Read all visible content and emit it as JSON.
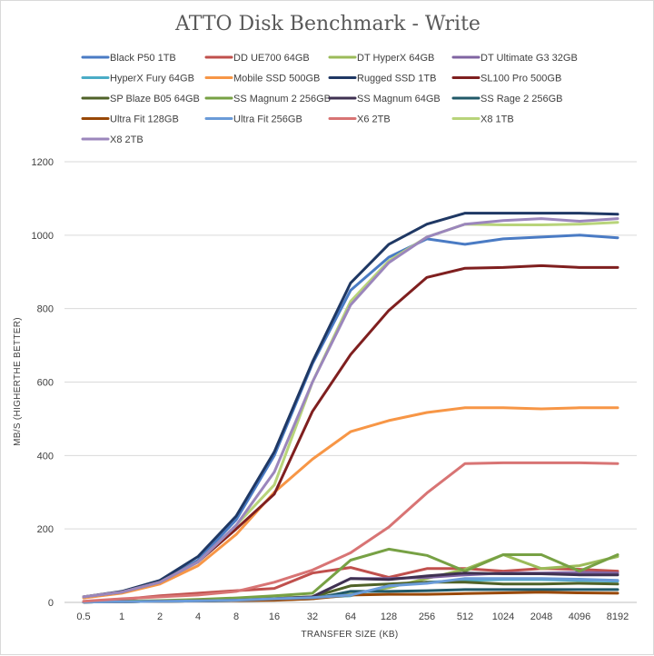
{
  "chart_data": {
    "type": "line",
    "title": "ATTO Disk Benchmark - Write",
    "xlabel": "TRANSFER SIZE (KB)",
    "ylabel": "MB/S (HIGHERTHE BETTER)",
    "ylim": [
      0,
      1200
    ],
    "yticks": [
      0,
      200,
      400,
      600,
      800,
      1000,
      1200
    ],
    "grid": true,
    "legend_position": "top",
    "categories": [
      "0.5",
      "1",
      "2",
      "4",
      "8",
      "16",
      "32",
      "64",
      "128",
      "256",
      "512",
      "1024",
      "2048",
      "4096",
      "8192"
    ],
    "series": [
      {
        "name": "Black P50 1TB",
        "color": "#4a7bc4",
        "values": [
          15,
          28,
          55,
          115,
          225,
          400,
          650,
          850,
          940,
          990,
          975,
          990,
          995,
          1000,
          993
        ]
      },
      {
        "name": "DD UE700 64GB",
        "color": "#c0504d",
        "values": [
          2,
          8,
          18,
          25,
          32,
          38,
          80,
          95,
          68,
          92,
          92,
          85,
          92,
          90,
          85
        ]
      },
      {
        "name": "DT HyperX 64GB",
        "color": "#9bbb59",
        "values": [
          1,
          2,
          3,
          5,
          8,
          12,
          15,
          22,
          40,
          65,
          90,
          130,
          92,
          100,
          125
        ]
      },
      {
        "name": "DT Ultimate G3 32GB",
        "color": "#8064a2",
        "values": [
          1,
          2,
          3,
          4,
          6,
          10,
          15,
          65,
          65,
          68,
          75,
          80,
          80,
          82,
          80
        ]
      },
      {
        "name": "HyperX Fury 64GB",
        "color": "#4bacc6",
        "values": [
          1,
          2,
          3,
          4,
          6,
          8,
          12,
          18,
          45,
          55,
          60,
          62,
          62,
          60,
          58
        ]
      },
      {
        "name": "Mobile SSD 500GB",
        "color": "#f79646",
        "values": [
          12,
          25,
          50,
          100,
          185,
          300,
          390,
          465,
          495,
          517,
          530,
          530,
          527,
          530,
          530
        ]
      },
      {
        "name": "Rugged SSD 1TB",
        "color": "#1f3864",
        "values": [
          15,
          30,
          60,
          125,
          235,
          410,
          655,
          870,
          975,
          1030,
          1060,
          1060,
          1060,
          1060,
          1057
        ]
      },
      {
        "name": "SL100 Pro 500GB",
        "color": "#7f1f1f",
        "values": [
          15,
          28,
          55,
          110,
          200,
          295,
          520,
          675,
          795,
          885,
          910,
          912,
          917,
          912,
          912
        ]
      },
      {
        "name": "SP Blaze B05 64GB",
        "color": "#4f6228",
        "values": [
          1,
          2,
          3,
          4,
          5,
          10,
          15,
          45,
          50,
          55,
          55,
          50,
          50,
          52,
          50
        ]
      },
      {
        "name": "SS Magnum 2 256GB",
        "color": "#77a144",
        "values": [
          1,
          3,
          5,
          8,
          12,
          18,
          25,
          115,
          145,
          128,
          85,
          130,
          130,
          85,
          130
        ]
      },
      {
        "name": "SS Magnum 64GB",
        "color": "#3f3151",
        "values": [
          1,
          2,
          3,
          4,
          6,
          10,
          15,
          65,
          62,
          72,
          80,
          78,
          78,
          75,
          75
        ]
      },
      {
        "name": "SS Rage 2 256GB",
        "color": "#215968",
        "values": [
          1,
          2,
          3,
          4,
          5,
          7,
          10,
          30,
          30,
          32,
          35,
          35,
          35,
          35,
          35
        ]
      },
      {
        "name": "Ultra Fit 128GB",
        "color": "#984807",
        "values": [
          1,
          2,
          3,
          4,
          5,
          6,
          10,
          20,
          22,
          22,
          24,
          26,
          28,
          26,
          25
        ]
      },
      {
        "name": "Ultra Fit 256GB",
        "color": "#6a9bd8",
        "values": [
          1,
          2,
          3,
          4,
          6,
          10,
          13,
          20,
          45,
          52,
          65,
          65,
          65,
          63,
          60
        ]
      },
      {
        "name": "X6 2TB",
        "color": "#d87474",
        "values": [
          3,
          10,
          15,
          20,
          30,
          55,
          88,
          135,
          205,
          298,
          378,
          380,
          380,
          380,
          378
        ]
      },
      {
        "name": "X8 1TB",
        "color": "#b8d47a",
        "values": [
          15,
          28,
          55,
          110,
          210,
          320,
          600,
          820,
          930,
          995,
          1030,
          1028,
          1028,
          1030,
          1035
        ]
      },
      {
        "name": "X8 2TB",
        "color": "#9b86bc",
        "values": [
          15,
          28,
          55,
          110,
          210,
          355,
          600,
          810,
          925,
          995,
          1030,
          1040,
          1045,
          1038,
          1045
        ]
      }
    ]
  }
}
